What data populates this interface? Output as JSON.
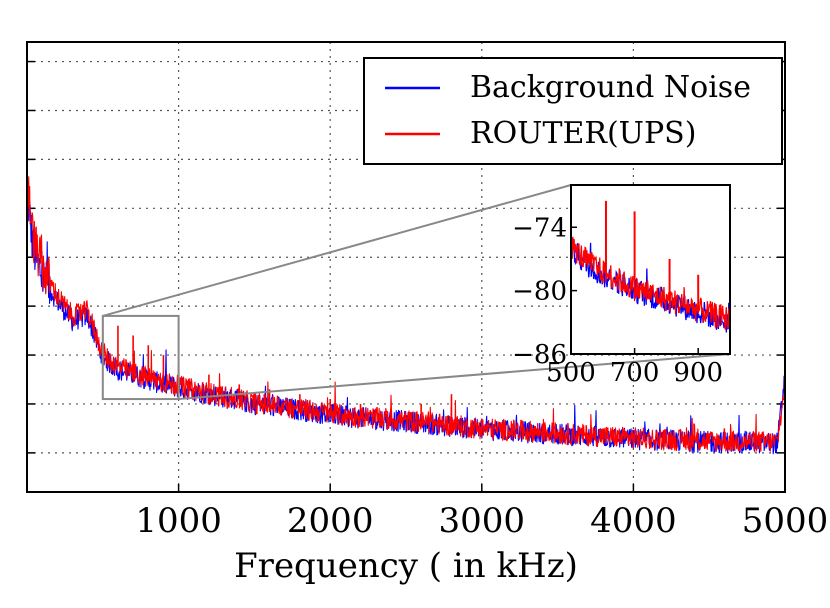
{
  "chart_data": [
    {
      "type": "line",
      "xlabel": "Frequency ( in kHz)",
      "ylabel": "",
      "xlim": [
        0,
        5000
      ],
      "ylim": [
        -97,
        -51
      ],
      "xticks": [
        1000,
        2000,
        3000,
        4000,
        5000
      ],
      "yticks": [
        -93,
        -88,
        -83,
        -78,
        -73,
        -68,
        -63,
        -58,
        -53
      ],
      "grid": true,
      "legend_position": "top-right",
      "series": [
        {
          "name": "Background Noise",
          "color": "#0000ff",
          "x": [
            0,
            40,
            100,
            200,
            300,
            400,
            480,
            520,
            600,
            700,
            800,
            900,
            1000,
            1200,
            1500,
            1800,
            2100,
            2500,
            3000,
            3500,
            4000,
            4500,
            4950,
            5000
          ],
          "y": [
            -66,
            -72,
            -75,
            -77.5,
            -79.5,
            -79,
            -82.5,
            -83.5,
            -84.5,
            -85,
            -85.5,
            -86,
            -86.3,
            -87,
            -88,
            -88.6,
            -89.3,
            -89.8,
            -90.6,
            -91.1,
            -91.6,
            -91.9,
            -92,
            -85
          ]
        },
        {
          "name": "ROUTER(UPS)",
          "color": "#ff0000",
          "x": [
            0,
            40,
            100,
            200,
            300,
            400,
            480,
            520,
            600,
            700,
            800,
            900,
            1000,
            1200,
            1500,
            1800,
            2100,
            2500,
            3000,
            3500,
            4000,
            4500,
            4950,
            5000
          ],
          "y": [
            -65,
            -71,
            -74,
            -77,
            -79,
            -78.5,
            -82,
            -83.2,
            -84.2,
            -84.8,
            -85.3,
            -85.8,
            -86.2,
            -86.9,
            -87.9,
            -88.5,
            -89.2,
            -89.7,
            -90.5,
            -91,
            -91.5,
            -91.8,
            -91.9,
            -86
          ],
          "spikes_x": [
            500,
            600,
            700,
            800,
            900,
            1000,
            1200,
            1400,
            1600,
            1800,
            2000,
            2200,
            2400,
            2600,
            2800,
            3000,
            3200,
            3400,
            3600,
            3800,
            4000,
            4200,
            4400,
            4600,
            4800
          ],
          "spikes_y": [
            -79,
            -80,
            -81,
            -82,
            -83,
            -84,
            -85,
            -86,
            -86.5,
            -87,
            -87.5,
            -88,
            -88.5,
            -88,
            -87,
            -89.5,
            -90,
            -90,
            -90.5,
            -90.5,
            -91,
            -91,
            -90,
            -90.5,
            -91
          ]
        }
      ]
    },
    {
      "type": "line",
      "role": "inset-zoom",
      "xlim": [
        500,
        1000
      ],
      "ylim": [
        -86,
        -70
      ],
      "xticks": [
        500,
        700,
        900
      ],
      "yticks": [
        -74,
        -80,
        -86
      ],
      "zoom_region": {
        "x": [
          500,
          1000
        ],
        "y": [
          -87.5,
          -79
        ]
      },
      "series": [
        {
          "name": "Background Noise",
          "color": "#0000ff",
          "x": [
            500,
            550,
            600,
            650,
            700,
            750,
            800,
            850,
            900,
            950,
            1000
          ],
          "y": [
            -76,
            -77.5,
            -78.5,
            -79.2,
            -80,
            -80.5,
            -81,
            -81.5,
            -82,
            -82.5,
            -83
          ]
        },
        {
          "name": "ROUTER(UPS)",
          "color": "#ff0000",
          "x": [
            500,
            550,
            600,
            650,
            700,
            750,
            800,
            850,
            900,
            950,
            1000
          ],
          "y": [
            -75.8,
            -77.2,
            -78.2,
            -79,
            -79.8,
            -80.3,
            -80.8,
            -81.3,
            -81.8,
            -82.3,
            -82.7
          ],
          "spikes_x": [
            610,
            700,
            810,
            900
          ],
          "spikes_y": [
            -71.5,
            -72.5,
            -77,
            -78.5
          ]
        }
      ]
    }
  ]
}
